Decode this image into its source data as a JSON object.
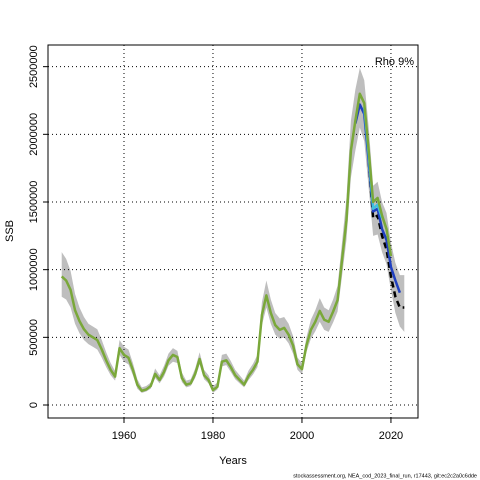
{
  "chart_data": {
    "type": "line",
    "x_label": "Years",
    "y_label": "SSB",
    "annotation": "Rho 9%",
    "footer": "stockassessment.org, NEA_cod_2023_final_run, r17443, git:ec2c2a0c6dde",
    "xlim": [
      1942.92,
      2026.08
    ],
    "xticks": [
      1960,
      1980,
      2000,
      2020
    ],
    "ylim": [
      -96000,
      2660000
    ],
    "yticks": [
      0,
      500000,
      1000000,
      1500000,
      2000000,
      2500000
    ],
    "grid": true,
    "band": {
      "color": "#bebebe",
      "x": [
        1946,
        1947,
        1948,
        1949,
        1950,
        1951,
        1952,
        1953,
        1954,
        1955,
        1956,
        1957,
        1958,
        1959,
        1960,
        1961,
        1962,
        1963,
        1964,
        1965,
        1966,
        1967,
        1968,
        1969,
        1970,
        1971,
        1972,
        1973,
        1974,
        1975,
        1976,
        1977,
        1978,
        1979,
        1980,
        1981,
        1982,
        1983,
        1984,
        1985,
        1986,
        1987,
        1988,
        1989,
        1990,
        1991,
        1992,
        1993,
        1994,
        1995,
        1996,
        1997,
        1998,
        1999,
        2000,
        2001,
        2002,
        2003,
        2004,
        2005,
        2006,
        2007,
        2008,
        2009,
        2010,
        2011,
        2012,
        2013,
        2014,
        2015,
        2016,
        2017,
        2018,
        2019,
        2020,
        2021,
        2022,
        2023
      ],
      "lower": [
        800000,
        780000,
        720000,
        600000,
        530000,
        480000,
        450000,
        430000,
        410000,
        350000,
        280000,
        220000,
        180000,
        370000,
        320000,
        300000,
        220000,
        120000,
        90000,
        100000,
        120000,
        200000,
        160000,
        210000,
        290000,
        320000,
        310000,
        170000,
        130000,
        140000,
        200000,
        300000,
        190000,
        160000,
        90000,
        115000,
        285000,
        295000,
        245000,
        190000,
        160000,
        130000,
        185000,
        225000,
        280000,
        590000,
        720000,
        600000,
        520000,
        490000,
        500000,
        455000,
        380000,
        260000,
        225000,
        390000,
        490000,
        545000,
        615000,
        555000,
        540000,
        610000,
        690000,
        950000,
        1220000,
        1680000,
        1880000,
        2050000,
        1950000,
        1600000,
        1250000,
        1260000,
        1130000,
        1040000,
        850000,
        680000,
        580000,
        540000
      ],
      "upper": [
        1130000,
        1080000,
        990000,
        820000,
        720000,
        650000,
        600000,
        580000,
        560000,
        480000,
        390000,
        310000,
        250000,
        480000,
        430000,
        410000,
        310000,
        190000,
        130000,
        140000,
        165000,
        270000,
        220000,
        290000,
        380000,
        420000,
        400000,
        240000,
        180000,
        190000,
        270000,
        390000,
        260000,
        220000,
        140000,
        165000,
        370000,
        380000,
        325000,
        260000,
        220000,
        180000,
        255000,
        305000,
        370000,
        760000,
        920000,
        780000,
        680000,
        640000,
        650000,
        600000,
        510000,
        350000,
        310000,
        500000,
        630000,
        700000,
        790000,
        720000,
        700000,
        780000,
        880000,
        1200000,
        1530000,
        2100000,
        2330000,
        2490000,
        2400000,
        2050000,
        1620000,
        1650000,
        1500000,
        1420000,
        1200000,
        1050000,
        960000,
        960000
      ]
    },
    "series": [
      {
        "color": "#000000",
        "dashed": true,
        "x": [
          2015,
          2016,
          2017,
          2018,
          2019,
          2020,
          2021,
          2022,
          2023
        ],
        "values": [
          1800000,
          1380000,
          1400000,
          1250000,
          1150000,
          950000,
          800000,
          720000,
          720000
        ]
      },
      {
        "color": "#2040c0",
        "x": [
          2012,
          2013,
          2014,
          2015,
          2016,
          2017,
          2018,
          2019,
          2020,
          2021,
          2022
        ],
        "values": [
          2080000,
          2220000,
          2150000,
          1800000,
          1430000,
          1450000,
          1300000,
          1220000,
          1020000,
          920000,
          830000
        ]
      },
      {
        "color": "#40c0e0",
        "x": [
          2014,
          2015,
          2016,
          2017,
          2018
        ],
        "values": [
          2200000,
          1850000,
          1450000,
          1480000,
          1380000
        ]
      },
      {
        "color": "#7aa83a",
        "x": [
          1946,
          1947,
          1948,
          1949,
          1950,
          1951,
          1952,
          1953,
          1954,
          1955,
          1956,
          1957,
          1958,
          1959,
          1960,
          1961,
          1962,
          1963,
          1964,
          1965,
          1966,
          1967,
          1968,
          1969,
          1970,
          1971,
          1972,
          1973,
          1974,
          1975,
          1976,
          1977,
          1978,
          1979,
          1980,
          1981,
          1982,
          1983,
          1984,
          1985,
          1986,
          1987,
          1988,
          1989,
          1990,
          1991,
          1992,
          1993,
          1994,
          1995,
          1996,
          1997,
          1998,
          1999,
          2000,
          2001,
          2002,
          2003,
          2004,
          2005,
          2006,
          2007,
          2008,
          2009,
          2010,
          2011,
          2012,
          2013,
          2014,
          2015,
          2016,
          2017,
          2018,
          2019,
          2020
        ],
        "values": [
          950000,
          920000,
          850000,
          700000,
          620000,
          560000,
          520000,
          500000,
          480000,
          410000,
          330000,
          260000,
          210000,
          420000,
          370000,
          350000,
          260000,
          150000,
          105000,
          115000,
          140000,
          230000,
          185000,
          245000,
          330000,
          370000,
          355000,
          200000,
          150000,
          160000,
          230000,
          340000,
          220000,
          185000,
          110000,
          135000,
          320000,
          330000,
          280000,
          220000,
          185000,
          150000,
          215000,
          260000,
          320000,
          665000,
          810000,
          680000,
          590000,
          555000,
          570000,
          520000,
          440000,
          300000,
          265000,
          440000,
          555000,
          615000,
          695000,
          630000,
          615000,
          690000,
          775000,
          1070000,
          1365000,
          1880000,
          2100000,
          2300000,
          2230000,
          1880000,
          1500000,
          1530000,
          1400000,
          1300000,
          1100000
        ]
      }
    ]
  }
}
